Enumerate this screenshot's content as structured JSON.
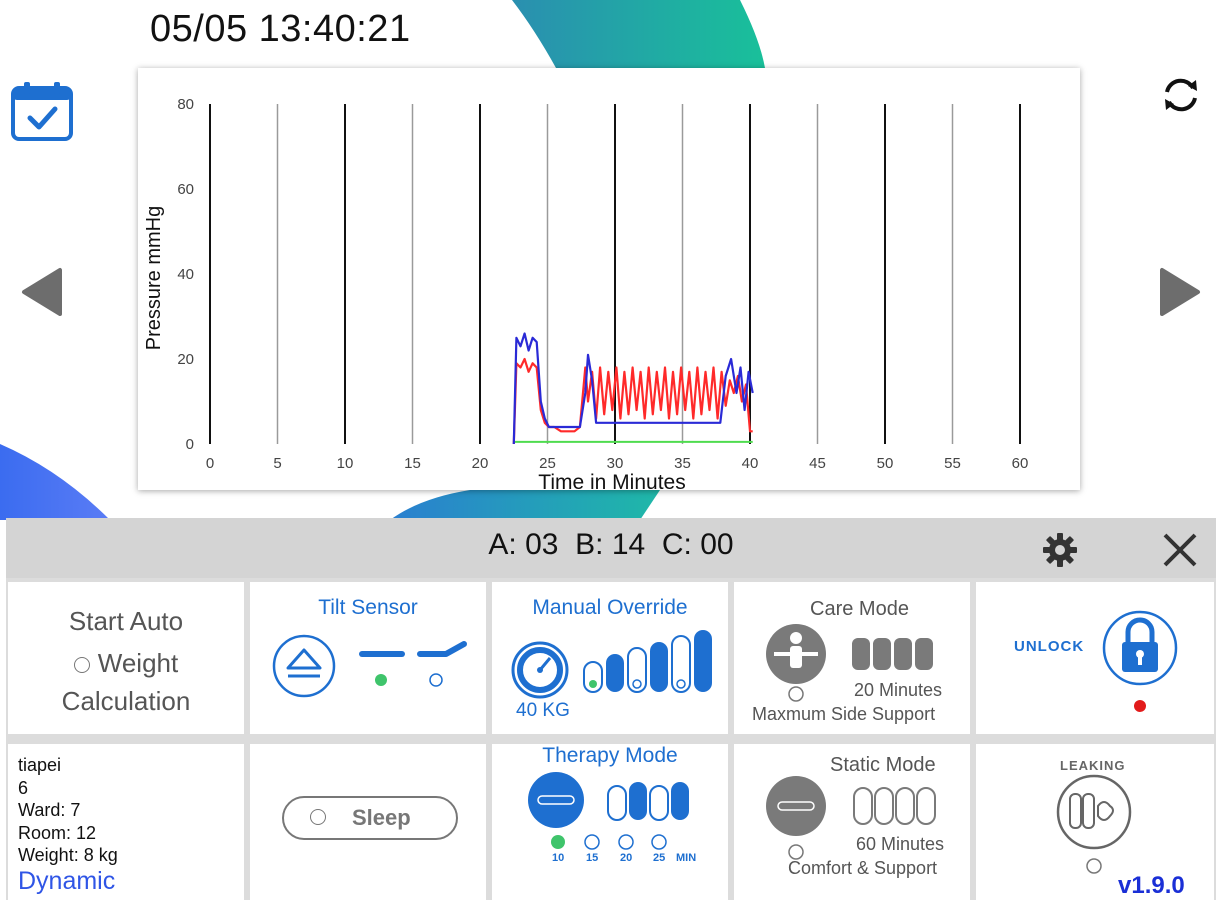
{
  "header": {
    "date": "05/05",
    "time": "13:40:21"
  },
  "icons": {
    "calendar": "calendar-check-icon",
    "refresh": "refresh-icon",
    "prev": "triangle-left-icon",
    "next": "triangle-right-icon",
    "settings": "gear-icon",
    "close": "close-icon"
  },
  "colors": {
    "series_a": "#ff2a2a",
    "series_b": "#2a2ad6",
    "series_c": "#4fdc4f",
    "accent_blue": "#1e6fd0",
    "deco_teal": "#19b89a"
  },
  "chart_data": {
    "type": "line",
    "xlabel": "Time in Minutes",
    "ylabel": "Pressure mmHg",
    "xlim": [
      0,
      60
    ],
    "ylim": [
      0,
      80
    ],
    "xticks": [
      0,
      5,
      10,
      15,
      20,
      25,
      30,
      35,
      40,
      45,
      50,
      55,
      60
    ],
    "yticks": [
      0,
      20,
      40,
      60,
      80
    ],
    "grid": "vertical",
    "series": [
      {
        "color": "red",
        "x": [
          22.5,
          22.7,
          23,
          23.3,
          23.6,
          23.9,
          24.2,
          24.5,
          24.8,
          25.1,
          25.5,
          26,
          26.5,
          27,
          27.4,
          27.8,
          28,
          28.3,
          28.6,
          28.9,
          29.2,
          29.5,
          29.8,
          30.1,
          30.4,
          30.7,
          31,
          31.3,
          31.6,
          31.9,
          32.2,
          32.5,
          32.8,
          33.1,
          33.4,
          33.7,
          34,
          34.3,
          34.6,
          34.9,
          35.2,
          35.5,
          35.8,
          36.1,
          36.4,
          36.7,
          37,
          37.3,
          37.6,
          37.9,
          38.2,
          38.5,
          38.8,
          39.1,
          39.4,
          39.7,
          40,
          40.2
        ],
        "y": [
          0,
          19,
          18,
          20,
          17,
          19,
          18,
          8,
          5,
          4,
          4,
          3,
          3,
          3,
          4,
          18,
          10,
          17,
          6,
          18,
          7,
          17,
          8,
          18,
          6,
          17,
          7,
          18,
          8,
          17,
          6,
          18,
          7,
          17,
          8,
          18,
          6,
          17,
          7,
          18,
          8,
          17,
          6,
          18,
          7,
          17,
          8,
          18,
          6,
          17,
          9,
          15,
          12,
          16,
          10,
          14,
          3,
          3
        ]
      },
      {
        "color": "blue",
        "x": [
          22.5,
          22.7,
          23,
          23.3,
          23.6,
          23.9,
          24.2,
          24.5,
          24.8,
          25.1,
          25.5,
          26,
          26.5,
          27,
          27.4,
          27.8,
          28,
          28.3,
          28.6,
          29,
          30,
          31,
          32,
          33,
          34,
          35,
          36,
          37,
          37.8,
          38.2,
          38.6,
          39,
          39.3,
          39.6,
          39.9,
          40.2
        ],
        "y": [
          0,
          25,
          23,
          26,
          22,
          25,
          24,
          10,
          6,
          4,
          4,
          4,
          4,
          4,
          4,
          12,
          21,
          15,
          5,
          5,
          5,
          5,
          5,
          5,
          5,
          5,
          5,
          5,
          5,
          16,
          20,
          12,
          18,
          8,
          17,
          12
        ]
      },
      {
        "color": "green",
        "x": [
          22.5,
          40.2
        ],
        "y": [
          0.5,
          0.5
        ]
      }
    ]
  },
  "status": {
    "a_label": "A:",
    "a_value": "03",
    "b_label": "B:",
    "b_value": "14",
    "c_label": "C:",
    "c_value": "00"
  },
  "tiles": {
    "auto": {
      "line1": "Start Auto",
      "line2": "Weight",
      "line3": "Calculation"
    },
    "tilt": {
      "title": "Tilt Sensor"
    },
    "manual": {
      "title": "Manual Override",
      "weight": "40 KG",
      "level_selected": 1,
      "level_count": 6
    },
    "care": {
      "title": "Care Mode",
      "minutes": "20 Minutes",
      "subtitle": "Maxmum Side Support"
    },
    "lock": {
      "label": "UNLOCK",
      "indicator": "red"
    },
    "patient": {
      "name": "tiapei",
      "bed": "6",
      "ward": "Ward: 7",
      "room": "Room: 12",
      "weight": "Weight: 8 kg",
      "mode": "Dynamic"
    },
    "sleep": {
      "label": "Sleep"
    },
    "therapy": {
      "title": "Therapy Mode",
      "options": [
        "10",
        "15",
        "20",
        "25"
      ],
      "unit": "MIN",
      "selected": "10"
    },
    "static": {
      "title": "Static Mode",
      "minutes": "60 Minutes",
      "subtitle": "Comfort & Support"
    },
    "leak": {
      "label": "LEAKING",
      "version": "v1.9.0"
    }
  }
}
